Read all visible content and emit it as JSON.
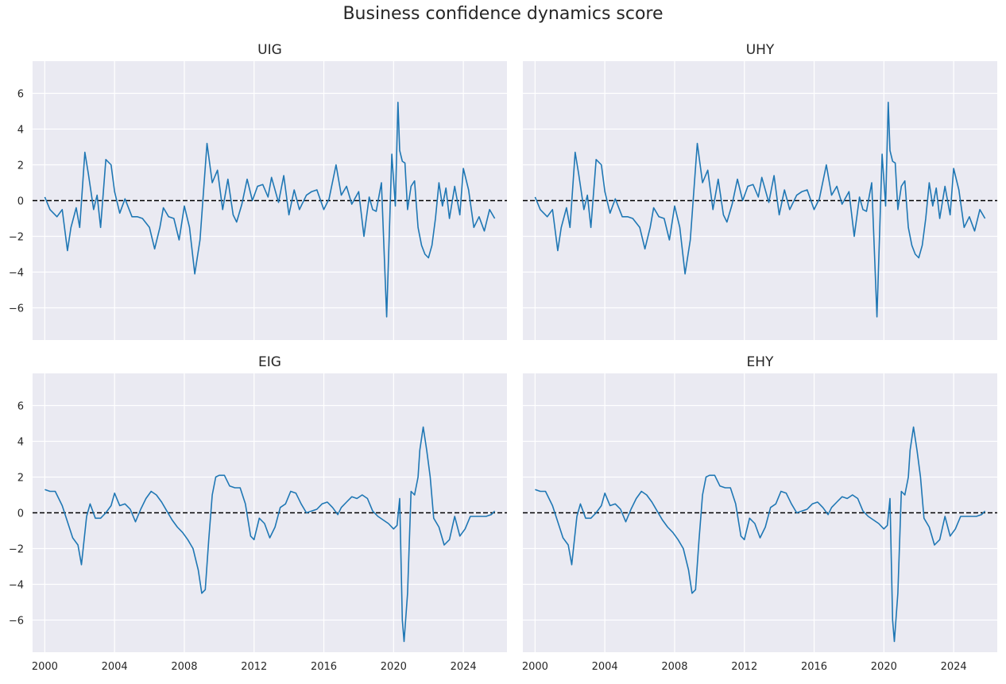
{
  "title": "Business confidence dynamics score",
  "colors": {
    "line": "#1f77b4",
    "zero": "#000000",
    "panel_bg": "#eaeaf2",
    "grid": "#ffffff"
  },
  "chart_data": {
    "type": "line",
    "shared_axes": true,
    "xlim": [
      1999.3,
      2026.5
    ],
    "ylim": [
      -7.8,
      7.8
    ],
    "x_ticks": [
      2000,
      2004,
      2008,
      2012,
      2016,
      2020,
      2024
    ],
    "y_ticks": [
      -6,
      -4,
      -2,
      0,
      2,
      4,
      6
    ],
    "reference_line": {
      "y": 0,
      "style": "dashed"
    },
    "panels": [
      {
        "name": "UIG",
        "x": [
          2000.0,
          2000.3,
          2000.7,
          2001.0,
          2001.3,
          2001.5,
          2001.8,
          2002.0,
          2002.3,
          2002.5,
          2002.8,
          2003.0,
          2003.2,
          2003.5,
          2003.8,
          2004.0,
          2004.3,
          2004.6,
          2005.0,
          2005.3,
          2005.6,
          2006.0,
          2006.3,
          2006.6,
          2006.8,
          2007.1,
          2007.4,
          2007.7,
          2008.0,
          2008.3,
          2008.6,
          2008.9,
          2009.1,
          2009.3,
          2009.6,
          2009.9,
          2010.2,
          2010.5,
          2010.8,
          2011.0,
          2011.3,
          2011.6,
          2011.9,
          2012.2,
          2012.5,
          2012.8,
          2013.0,
          2013.4,
          2013.7,
          2014.0,
          2014.3,
          2014.6,
          2015.0,
          2015.3,
          2015.6,
          2016.0,
          2016.3,
          2016.7,
          2017.0,
          2017.3,
          2017.6,
          2018.0,
          2018.3,
          2018.6,
          2018.8,
          2019.0,
          2019.3,
          2019.6,
          2019.9,
          2020.1,
          2020.25,
          2020.35,
          2020.5,
          2020.65,
          2020.8,
          2021.0,
          2021.2,
          2021.4,
          2021.6,
          2021.8,
          2022.0,
          2022.2,
          2022.4,
          2022.6,
          2022.8,
          2023.0,
          2023.2,
          2023.5,
          2023.8,
          2024.0,
          2024.3,
          2024.6,
          2024.9,
          2025.2,
          2025.5,
          2025.8
        ],
        "y": [
          0.2,
          -0.5,
          -0.9,
          -0.5,
          -2.8,
          -1.5,
          -0.4,
          -1.5,
          2.7,
          1.5,
          -0.5,
          0.3,
          -1.5,
          2.3,
          2.0,
          0.5,
          -0.7,
          0.1,
          -0.9,
          -0.9,
          -1.0,
          -1.5,
          -2.7,
          -1.5,
          -0.4,
          -0.9,
          -1.0,
          -2.2,
          -0.3,
          -1.5,
          -4.1,
          -2.2,
          0.5,
          3.2,
          1.0,
          1.7,
          -0.5,
          1.2,
          -0.8,
          -1.2,
          -0.2,
          1.2,
          0.0,
          0.8,
          0.9,
          0.2,
          1.3,
          -0.1,
          1.4,
          -0.8,
          0.6,
          -0.5,
          0.3,
          0.5,
          0.6,
          -0.5,
          0.1,
          2.0,
          0.3,
          0.8,
          -0.2,
          0.5,
          -2.0,
          0.2,
          -0.5,
          -0.6,
          1.0,
          -6.5,
          2.6,
          -0.3,
          5.5,
          2.8,
          2.2,
          2.1,
          -0.5,
          0.8,
          1.1,
          -1.5,
          -2.5,
          -3.0,
          -3.2,
          -2.5,
          -1.0,
          1.0,
          -0.3,
          0.7,
          -1.0,
          0.8,
          -0.8,
          1.8,
          0.6,
          -1.5,
          -0.9,
          -1.7,
          -0.5,
          -1.0
        ]
      },
      {
        "name": "UHY",
        "x": [
          2000.0,
          2000.3,
          2000.7,
          2001.0,
          2001.3,
          2001.5,
          2001.8,
          2002.0,
          2002.3,
          2002.5,
          2002.8,
          2003.0,
          2003.2,
          2003.5,
          2003.8,
          2004.0,
          2004.3,
          2004.6,
          2005.0,
          2005.3,
          2005.6,
          2006.0,
          2006.3,
          2006.6,
          2006.8,
          2007.1,
          2007.4,
          2007.7,
          2008.0,
          2008.3,
          2008.6,
          2008.9,
          2009.1,
          2009.3,
          2009.6,
          2009.9,
          2010.2,
          2010.5,
          2010.8,
          2011.0,
          2011.3,
          2011.6,
          2011.9,
          2012.2,
          2012.5,
          2012.8,
          2013.0,
          2013.4,
          2013.7,
          2014.0,
          2014.3,
          2014.6,
          2015.0,
          2015.3,
          2015.6,
          2016.0,
          2016.3,
          2016.7,
          2017.0,
          2017.3,
          2017.6,
          2018.0,
          2018.3,
          2018.6,
          2018.8,
          2019.0,
          2019.3,
          2019.6,
          2019.9,
          2020.1,
          2020.25,
          2020.35,
          2020.5,
          2020.65,
          2020.8,
          2021.0,
          2021.2,
          2021.4,
          2021.6,
          2021.8,
          2022.0,
          2022.2,
          2022.4,
          2022.6,
          2022.8,
          2023.0,
          2023.2,
          2023.5,
          2023.8,
          2024.0,
          2024.3,
          2024.6,
          2024.9,
          2025.2,
          2025.5,
          2025.8
        ],
        "y": [
          0.2,
          -0.5,
          -0.9,
          -0.5,
          -2.8,
          -1.5,
          -0.4,
          -1.5,
          2.7,
          1.5,
          -0.5,
          0.3,
          -1.5,
          2.3,
          2.0,
          0.5,
          -0.7,
          0.1,
          -0.9,
          -0.9,
          -1.0,
          -1.5,
          -2.7,
          -1.5,
          -0.4,
          -0.9,
          -1.0,
          -2.2,
          -0.3,
          -1.5,
          -4.1,
          -2.2,
          0.5,
          3.2,
          1.0,
          1.7,
          -0.5,
          1.2,
          -0.8,
          -1.2,
          -0.2,
          1.2,
          0.0,
          0.8,
          0.9,
          0.2,
          1.3,
          -0.1,
          1.4,
          -0.8,
          0.6,
          -0.5,
          0.3,
          0.5,
          0.6,
          -0.5,
          0.1,
          2.0,
          0.3,
          0.8,
          -0.2,
          0.5,
          -2.0,
          0.2,
          -0.5,
          -0.6,
          1.0,
          -6.5,
          2.6,
          -0.3,
          5.5,
          2.8,
          2.2,
          2.1,
          -0.5,
          0.8,
          1.1,
          -1.5,
          -2.5,
          -3.0,
          -3.2,
          -2.5,
          -1.0,
          1.0,
          -0.3,
          0.7,
          -1.0,
          0.8,
          -0.8,
          1.8,
          0.6,
          -1.5,
          -0.9,
          -1.7,
          -0.5,
          -1.0
        ]
      },
      {
        "name": "EIG",
        "x": [
          2000.0,
          2000.3,
          2000.6,
          2001.0,
          2001.3,
          2001.6,
          2001.9,
          2002.1,
          2002.4,
          2002.6,
          2002.9,
          2003.2,
          2003.5,
          2003.8,
          2004.0,
          2004.3,
          2004.6,
          2004.9,
          2005.2,
          2005.5,
          2005.8,
          2006.1,
          2006.4,
          2006.7,
          2007.0,
          2007.3,
          2007.6,
          2007.9,
          2008.2,
          2008.5,
          2008.8,
          2009.0,
          2009.2,
          2009.4,
          2009.6,
          2009.8,
          2010.0,
          2010.3,
          2010.6,
          2010.9,
          2011.2,
          2011.5,
          2011.8,
          2012.0,
          2012.3,
          2012.6,
          2012.9,
          2013.2,
          2013.5,
          2013.8,
          2014.1,
          2014.4,
          2014.7,
          2015.0,
          2015.3,
          2015.6,
          2015.9,
          2016.2,
          2016.5,
          2016.8,
          2017.0,
          2017.3,
          2017.6,
          2017.9,
          2018.2,
          2018.5,
          2018.8,
          2019.1,
          2019.4,
          2019.7,
          2020.0,
          2020.2,
          2020.35,
          2020.5,
          2020.6,
          2020.8,
          2021.0,
          2021.2,
          2021.4,
          2021.5,
          2021.7,
          2021.9,
          2022.1,
          2022.3,
          2022.6,
          2022.9,
          2023.2,
          2023.5,
          2023.8,
          2024.1,
          2024.4,
          2024.7,
          2025.0,
          2025.3,
          2025.6,
          2025.8
        ],
        "y": [
          1.3,
          1.2,
          1.2,
          0.4,
          -0.5,
          -1.4,
          -1.8,
          -2.9,
          -0.2,
          0.5,
          -0.3,
          -0.3,
          0.0,
          0.4,
          1.1,
          0.4,
          0.5,
          0.2,
          -0.5,
          0.2,
          0.8,
          1.2,
          1.0,
          0.6,
          0.1,
          -0.4,
          -0.8,
          -1.1,
          -1.5,
          -2.0,
          -3.2,
          -4.5,
          -4.3,
          -1.5,
          1.0,
          2.0,
          2.1,
          2.1,
          1.5,
          1.4,
          1.4,
          0.5,
          -1.3,
          -1.5,
          -0.3,
          -0.6,
          -1.4,
          -0.8,
          0.3,
          0.5,
          1.2,
          1.1,
          0.5,
          0.0,
          0.1,
          0.2,
          0.5,
          0.6,
          0.3,
          -0.1,
          0.3,
          0.6,
          0.9,
          0.8,
          1.0,
          0.8,
          0.1,
          -0.2,
          -0.4,
          -0.6,
          -0.9,
          -0.7,
          0.8,
          -6.0,
          -7.2,
          -4.5,
          1.2,
          1.0,
          2.0,
          3.5,
          4.8,
          3.5,
          2.0,
          -0.3,
          -0.8,
          -1.8,
          -1.5,
          -0.2,
          -1.3,
          -0.9,
          -0.2,
          -0.2,
          -0.2,
          -0.2,
          -0.1,
          0.1
        ]
      },
      {
        "name": "EHY",
        "x": [
          2000.0,
          2000.3,
          2000.6,
          2001.0,
          2001.3,
          2001.6,
          2001.9,
          2002.1,
          2002.4,
          2002.6,
          2002.9,
          2003.2,
          2003.5,
          2003.8,
          2004.0,
          2004.3,
          2004.6,
          2004.9,
          2005.2,
          2005.5,
          2005.8,
          2006.1,
          2006.4,
          2006.7,
          2007.0,
          2007.3,
          2007.6,
          2007.9,
          2008.2,
          2008.5,
          2008.8,
          2009.0,
          2009.2,
          2009.4,
          2009.6,
          2009.8,
          2010.0,
          2010.3,
          2010.6,
          2010.9,
          2011.2,
          2011.5,
          2011.8,
          2012.0,
          2012.3,
          2012.6,
          2012.9,
          2013.2,
          2013.5,
          2013.8,
          2014.1,
          2014.4,
          2014.7,
          2015.0,
          2015.3,
          2015.6,
          2015.9,
          2016.2,
          2016.5,
          2016.8,
          2017.0,
          2017.3,
          2017.6,
          2017.9,
          2018.2,
          2018.5,
          2018.8,
          2019.1,
          2019.4,
          2019.7,
          2020.0,
          2020.2,
          2020.35,
          2020.5,
          2020.6,
          2020.8,
          2021.0,
          2021.2,
          2021.4,
          2021.5,
          2021.7,
          2021.9,
          2022.1,
          2022.3,
          2022.6,
          2022.9,
          2023.2,
          2023.5,
          2023.8,
          2024.1,
          2024.4,
          2024.7,
          2025.0,
          2025.3,
          2025.6,
          2025.8
        ],
        "y": [
          1.3,
          1.2,
          1.2,
          0.4,
          -0.5,
          -1.4,
          -1.8,
          -2.9,
          -0.2,
          0.5,
          -0.3,
          -0.3,
          0.0,
          0.4,
          1.1,
          0.4,
          0.5,
          0.2,
          -0.5,
          0.2,
          0.8,
          1.2,
          1.0,
          0.6,
          0.1,
          -0.4,
          -0.8,
          -1.1,
          -1.5,
          -2.0,
          -3.2,
          -4.5,
          -4.3,
          -1.5,
          1.0,
          2.0,
          2.1,
          2.1,
          1.5,
          1.4,
          1.4,
          0.5,
          -1.3,
          -1.5,
          -0.3,
          -0.6,
          -1.4,
          -0.8,
          0.3,
          0.5,
          1.2,
          1.1,
          0.5,
          0.0,
          0.1,
          0.2,
          0.5,
          0.6,
          0.3,
          -0.1,
          0.3,
          0.6,
          0.9,
          0.8,
          1.0,
          0.8,
          0.1,
          -0.2,
          -0.4,
          -0.6,
          -0.9,
          -0.7,
          0.8,
          -6.0,
          -7.2,
          -4.5,
          1.2,
          1.0,
          2.0,
          3.5,
          4.8,
          3.5,
          2.0,
          -0.3,
          -0.8,
          -1.8,
          -1.5,
          -0.2,
          -1.3,
          -0.9,
          -0.2,
          -0.2,
          -0.2,
          -0.2,
          -0.1,
          0.1
        ]
      }
    ]
  }
}
